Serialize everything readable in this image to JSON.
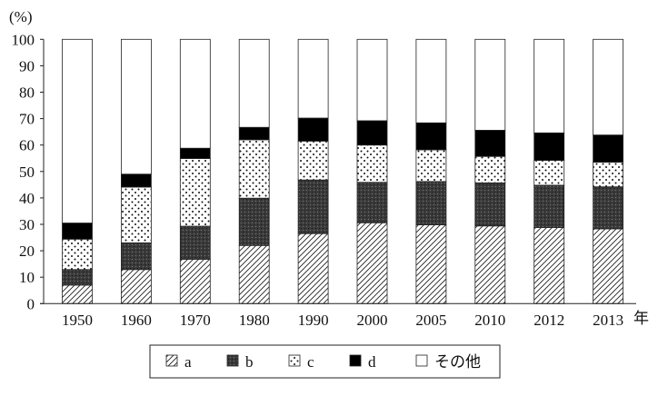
{
  "chart_data": {
    "type": "bar",
    "stacked": true,
    "ylabel": "(%)",
    "xlabel": "年",
    "ylim": [
      0,
      100
    ],
    "yticks": [
      0,
      10,
      20,
      30,
      40,
      50,
      60,
      70,
      80,
      90,
      100
    ],
    "grid": false,
    "legend_position": "bottom",
    "categories": [
      "1950",
      "1960",
      "1970",
      "1980",
      "1990",
      "2000",
      "2005",
      "2010",
      "2012",
      "2013"
    ],
    "series": [
      {
        "name": "a",
        "pattern": "diagonal-hatch",
        "values": [
          7.0,
          12.9,
          16.8,
          22.0,
          26.5,
          30.6,
          29.8,
          29.4,
          28.8,
          28.3
        ]
      },
      {
        "name": "b",
        "pattern": "dark-stipple",
        "values": [
          5.9,
          10.1,
          12.5,
          17.9,
          20.3,
          15.3,
          16.4,
          16.3,
          16.0,
          15.9
        ]
      },
      {
        "name": "c",
        "pattern": "dots",
        "values": [
          11.5,
          21.1,
          25.6,
          22.1,
          14.7,
          14.1,
          12.0,
          10.0,
          9.4,
          9.3
        ]
      },
      {
        "name": "d",
        "pattern": "solid-black",
        "values": [
          6.1,
          4.9,
          3.9,
          4.7,
          8.7,
          9.2,
          10.2,
          9.9,
          10.4,
          10.3
        ]
      },
      {
        "name": "その他",
        "pattern": "white",
        "values": [
          69.5,
          51.0,
          41.2,
          33.3,
          29.8,
          30.8,
          31.6,
          34.4,
          35.4,
          36.2
        ]
      }
    ]
  }
}
